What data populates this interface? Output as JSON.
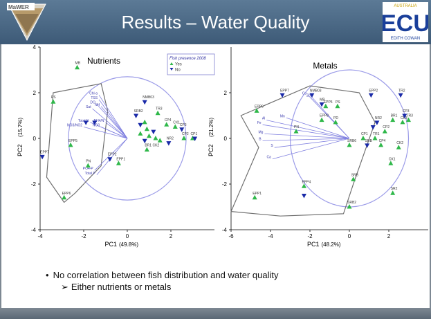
{
  "slide": {
    "title": "Results – Water Quality",
    "logo_left_text": "MaWER",
    "logo_right_text": "ECU",
    "logo_right_top": "AUSTRALIA",
    "logo_right_sub": "EDITH COWAN",
    "bullet": "No correlation between fish distribution and water quality",
    "sub_bullet": "Either nutrients or metals"
  },
  "colors": {
    "yes": "#2fb84a",
    "no": "#1a2aa8",
    "circle": "#9b9be8",
    "hull": "#707070",
    "vector": "#8080e0",
    "title_bar": "#4a6886"
  },
  "chart_data": [
    {
      "type": "scatter",
      "title": "Nutrients",
      "xlabel": "PC1",
      "xpct": "(49.8%)",
      "ylabel": "PC2",
      "ypct": "(15.7%)",
      "xlim": [
        -4,
        4
      ],
      "ylim": [
        -4,
        4
      ],
      "xticks": [
        "-4",
        "-2",
        "0",
        "2"
      ],
      "yticks": [
        "-4",
        "-2",
        "0",
        "2",
        "4"
      ],
      "legend": {
        "title": "Fish presence 2008",
        "items": [
          "Yes",
          "No"
        ],
        "position": "top-right"
      },
      "circle_radius": 2.7,
      "hull": [
        [
          -3.4,
          2.0
        ],
        [
          -1.2,
          2.4
        ],
        [
          -0.9,
          1.2
        ],
        [
          -1.2,
          -1.2
        ],
        [
          -2.4,
          -2.4
        ],
        [
          -2.9,
          -2.8
        ],
        [
          -3.7,
          -1.7
        ]
      ],
      "series": [
        {
          "name": "Yes",
          "points": [
            {
              "x": -2.3,
              "y": 3.1,
              "label": "MB"
            },
            {
              "x": -3.4,
              "y": 1.6,
              "label": "PS"
            },
            {
              "x": -2.6,
              "y": -0.3,
              "label": "EPP5"
            },
            {
              "x": -1.8,
              "y": -1.2,
              "label": "PN"
            },
            {
              "x": -2.9,
              "y": -2.6,
              "label": "EPP6"
            },
            {
              "x": -0.4,
              "y": -1.1,
              "label": "EPP1"
            },
            {
              "x": 1.4,
              "y": 1.1,
              "label": "TR3"
            },
            {
              "x": 0.8,
              "y": 0.7,
              "label": ""
            },
            {
              "x": 0.9,
              "y": 0.4,
              "label": ""
            },
            {
              "x": 0.6,
              "y": 0.2,
              "label": ""
            },
            {
              "x": 1.0,
              "y": 0.1,
              "label": ""
            },
            {
              "x": 1.8,
              "y": 0.6,
              "label": "CP4"
            },
            {
              "x": 2.2,
              "y": 0.5,
              "label": "CX1"
            },
            {
              "x": 1.5,
              "y": -0.1,
              "label": ""
            },
            {
              "x": 0.9,
              "y": -0.5,
              "label": "BR1 CK2"
            },
            {
              "x": 2.6,
              "y": 0.0,
              "label": "CP2"
            },
            {
              "x": 3.0,
              "y": 0.0,
              "label": "CP1"
            },
            {
              "x": 1.3,
              "y": 0.0,
              "label": ""
            }
          ]
        },
        {
          "name": "No",
          "points": [
            {
              "x": -3.9,
              "y": -0.8,
              "label": "EPP7"
            },
            {
              "x": -1.9,
              "y": 0.7,
              "label": ""
            },
            {
              "x": -1.5,
              "y": 0.7,
              "label": ""
            },
            {
              "x": -0.8,
              "y": -0.9,
              "label": "EPP2"
            },
            {
              "x": 0.8,
              "y": 1.6,
              "label": "NMB03"
            },
            {
              "x": 0.4,
              "y": 1.0,
              "label": "SRB2"
            },
            {
              "x": 0.6,
              "y": 0.6,
              "label": ""
            },
            {
              "x": 0.8,
              "y": -0.1,
              "label": ""
            },
            {
              "x": 1.9,
              "y": -0.2,
              "label": "NR2"
            },
            {
              "x": 2.5,
              "y": 0.4,
              "label": "CP3"
            },
            {
              "x": 3.1,
              "y": 0.0,
              "label": ""
            },
            {
              "x": 1.2,
              "y": 0.3,
              "label": ""
            }
          ]
        }
      ],
      "vectors": [
        {
          "x": -1.3,
          "y": 1.9,
          "label": "Chl-a"
        },
        {
          "x": -1.3,
          "y": 1.7,
          "label": "TSS"
        },
        {
          "x": -1.4,
          "y": 1.5,
          "label": "DO"
        },
        {
          "x": -1.2,
          "y": 1.4,
          "label": "NH"
        },
        {
          "x": -1.6,
          "y": 1.3,
          "label": "Sat"
        },
        {
          "x": -1.7,
          "y": 0.7,
          "label": "Total N"
        },
        {
          "x": -1.0,
          "y": 0.7,
          "label": "NH4/N"
        },
        {
          "x": -2.0,
          "y": 0.5,
          "label": "NO3/NO2"
        },
        {
          "x": -1.2,
          "y": 0.5,
          "label": "NO3"
        },
        {
          "x": -1.5,
          "y": -1.4,
          "label": "PO4-P"
        },
        {
          "x": -1.4,
          "y": -1.6,
          "label": "Total P"
        }
      ]
    },
    {
      "type": "scatter",
      "title": "Metals",
      "xlabel": "PC1",
      "xpct": "(48.2%)",
      "ylabel": "PC2",
      "ypct": "(21.2%)",
      "xlim": [
        -6,
        4
      ],
      "ylim": [
        -4,
        4
      ],
      "xticks": [
        "-6",
        "-4",
        "-2",
        "0",
        "2"
      ],
      "yticks": [
        "-4",
        "-2",
        "0",
        "2"
      ],
      "circle_radius": 3.0,
      "hull": [
        [
          -5.5,
          1.0
        ],
        [
          -2.0,
          2.3
        ],
        [
          0.5,
          2.0
        ],
        [
          1.3,
          0.7
        ],
        [
          0.2,
          -2.0
        ],
        [
          -0.3,
          -3.3
        ],
        [
          -3.5,
          -3.4
        ],
        [
          -6.0,
          -3.2
        ],
        [
          -4.6,
          -0.4
        ]
      ],
      "series": [
        {
          "name": "Yes",
          "points": [
            {
              "x": -4.7,
              "y": 1.2,
              "label": "EPP6"
            },
            {
              "x": -1.2,
              "y": 1.4,
              "label": "EPP5"
            },
            {
              "x": -0.6,
              "y": 1.4,
              "label": "PS"
            },
            {
              "x": -1.4,
              "y": 0.8,
              "label": "EPP8"
            },
            {
              "x": -0.7,
              "y": 0.7,
              "label": "PD"
            },
            {
              "x": -2.7,
              "y": 0.3,
              "label": "PN"
            },
            {
              "x": 0.0,
              "y": -0.3,
              "label": "SRB6"
            },
            {
              "x": 0.7,
              "y": 0.0,
              "label": "CP1"
            },
            {
              "x": 1.3,
              "y": 0.0,
              "label": "TR1"
            },
            {
              "x": 1.8,
              "y": 0.3,
              "label": "CP2"
            },
            {
              "x": 2.2,
              "y": 0.8,
              "label": "BR1"
            },
            {
              "x": 2.7,
              "y": 0.7,
              "label": "CK3"
            },
            {
              "x": 1.6,
              "y": -0.3,
              "label": "CP4"
            },
            {
              "x": 2.5,
              "y": -0.4,
              "label": "CK2"
            },
            {
              "x": 2.1,
              "y": -1.1,
              "label": "CK1"
            },
            {
              "x": 0.2,
              "y": -1.8,
              "label": "SRB"
            },
            {
              "x": 2.2,
              "y": -2.4,
              "label": "SR2"
            },
            {
              "x": 0.0,
              "y": -3.0,
              "label": "SRB2"
            },
            {
              "x": -4.8,
              "y": -2.6,
              "label": "EPP1"
            },
            {
              "x": -2.3,
              "y": -2.1,
              "label": "EPP4"
            },
            {
              "x": 3.0,
              "y": 0.8,
              "label": "TR3"
            }
          ]
        },
        {
          "name": "No",
          "points": [
            {
              "x": -3.4,
              "y": 1.9,
              "label": "EPP7"
            },
            {
              "x": -1.9,
              "y": 1.9,
              "label": "NMB03"
            },
            {
              "x": -1.4,
              "y": 1.5,
              "label": "MB"
            },
            {
              "x": 1.1,
              "y": 1.9,
              "label": "EPP2"
            },
            {
              "x": 2.6,
              "y": 1.9,
              "label": "TR2"
            },
            {
              "x": 2.8,
              "y": 1.0,
              "label": "CP3"
            },
            {
              "x": 1.4,
              "y": 0.7,
              "label": "NR2"
            },
            {
              "x": 0.9,
              "y": -0.3,
              "label": "SRB"
            },
            {
              "x": -2.3,
              "y": -2.5,
              "label": ""
            },
            {
              "x": 1.2,
              "y": 0.5,
              "label": ""
            }
          ]
        }
      ],
      "vectors": [
        {
          "x": -4.2,
          "y": 0.8,
          "label": "Al"
        },
        {
          "x": -4.4,
          "y": 0.6,
          "label": "Fe"
        },
        {
          "x": -3.2,
          "y": 0.9,
          "label": "Mn"
        },
        {
          "x": -4.3,
          "y": 0.2,
          "label": "Mg"
        },
        {
          "x": -4.4,
          "y": -0.1,
          "label": "B"
        },
        {
          "x": -3.8,
          "y": -0.4,
          "label": "S"
        },
        {
          "x": -3.9,
          "y": -0.9,
          "label": "Ca"
        },
        {
          "x": -2.1,
          "y": 1.9,
          "label": "Cu"
        },
        {
          "x": -1.9,
          "y": 1.8,
          "label": "Zn"
        }
      ]
    }
  ]
}
